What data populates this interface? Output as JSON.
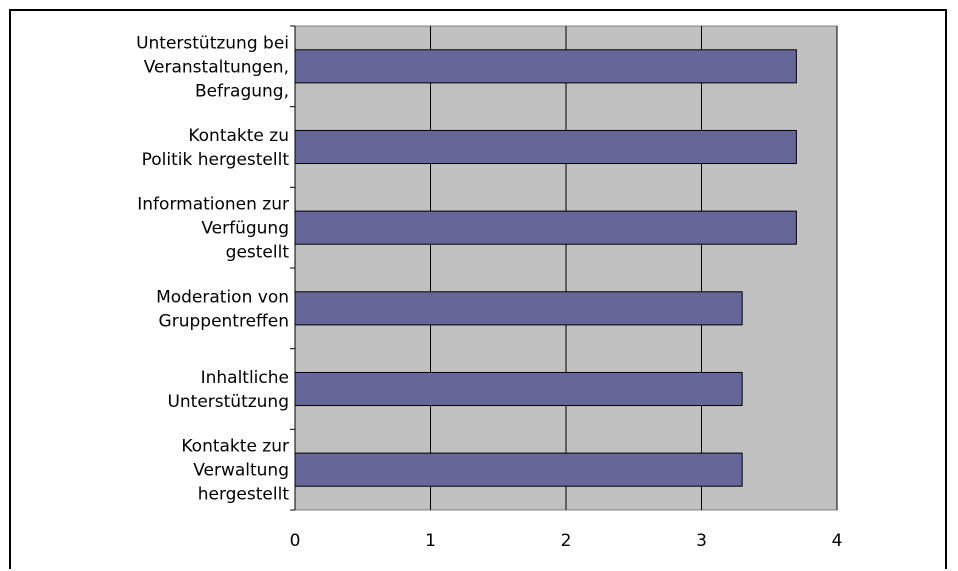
{
  "chart_data": {
    "type": "bar",
    "orientation": "horizontal",
    "categories": [
      "Unterstützung bei Veranstaltungen, Befragung,",
      "Kontakte zu Politik hergestellt",
      "Informationen zur Verfügung gestellt",
      "Moderation von Gruppentreffen",
      "Inhaltliche Unterstützung",
      "Kontakte zur Verwaltung hergestellt"
    ],
    "category_lines": [
      [
        "Unterstützung bei",
        "Veranstaltungen,",
        "Befragung,"
      ],
      [
        "Kontakte zu",
        "Politik hergestellt"
      ],
      [
        "Informationen zur",
        "Verfügung",
        "gestellt"
      ],
      [
        "Moderation von",
        "Gruppentreffen"
      ],
      [
        "Inhaltliche",
        "Unterstützung"
      ],
      [
        "Kontakte zur",
        "Verwaltung",
        "hergestellt"
      ]
    ],
    "values": [
      3.7,
      3.7,
      3.7,
      3.3,
      3.3,
      3.3
    ],
    "xlim": [
      0,
      4
    ],
    "xticks": [
      "0",
      "1",
      "2",
      "3",
      "4"
    ],
    "title": "",
    "xlabel": "",
    "ylabel": "",
    "grid": "vertical",
    "legend": "none",
    "colors": {
      "bar": "#666699",
      "plot_background": "#c0c0c0",
      "gridline": "#000000"
    }
  }
}
